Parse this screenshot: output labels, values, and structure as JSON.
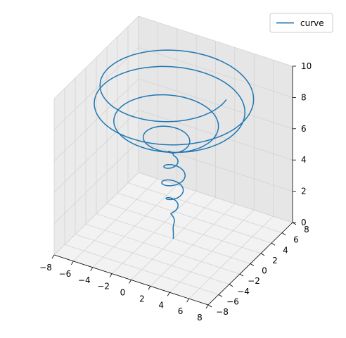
{
  "chart_data": {
    "type": "line",
    "projection": "3d",
    "title": "",
    "xlabel": "",
    "ylabel": "",
    "zlabel": "",
    "xlim": [
      -8,
      8
    ],
    "ylim": [
      -8,
      8
    ],
    "zlim": [
      0,
      10
    ],
    "x_ticks": [
      -8,
      -6,
      -4,
      -2,
      0,
      2,
      4,
      6,
      8
    ],
    "y_ticks": [
      -8,
      -6,
      -4,
      -2,
      0,
      2,
      4,
      6,
      8
    ],
    "z_ticks": [
      0,
      2,
      4,
      6,
      8,
      10
    ],
    "x_tick_labels": [
      "−8",
      "−6",
      "−4",
      "−2",
      "0",
      "2",
      "4",
      "6",
      "8"
    ],
    "y_tick_labels": [
      "−8",
      "−6",
      "−4",
      "−2",
      "0",
      "2",
      "4",
      "6",
      "8"
    ],
    "z_tick_labels": [
      "0",
      "2",
      "4",
      "6",
      "8",
      "10"
    ],
    "grid": true,
    "legend_position": "top-right",
    "series": [
      {
        "name": "curve",
        "color": "#1f77b4",
        "parametric": {
          "z_range": [
            0,
            10
          ],
          "turns_per_unit_z": 1.0,
          "radius_function": "z^2 * |sin(z)| ... (approx: r = z^2/10 * |sin(z)|-like)"
        },
        "points_x": [],
        "points_y": [],
        "points_z": []
      }
    ]
  }
}
